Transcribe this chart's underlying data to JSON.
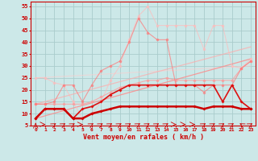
{
  "x": [
    0,
    1,
    2,
    3,
    4,
    5,
    6,
    7,
    8,
    9,
    10,
    11,
    12,
    13,
    14,
    15,
    16,
    17,
    18,
    19,
    20,
    21,
    22,
    23
  ],
  "line_dark1": [
    8,
    12,
    12,
    12,
    8,
    8,
    10,
    11,
    12,
    13,
    13,
    13,
    13,
    13,
    13,
    13,
    13,
    13,
    12,
    13,
    13,
    13,
    12,
    12
  ],
  "line_dark2": [
    8,
    12,
    12,
    12,
    8,
    12,
    13,
    15,
    18,
    20,
    22,
    22,
    22,
    22,
    22,
    22,
    22,
    22,
    22,
    22,
    15,
    22,
    15,
    12
  ],
  "line_med1": [
    14,
    14,
    14,
    14,
    14,
    14,
    15,
    17,
    19,
    21,
    22,
    23,
    24,
    24,
    25,
    24,
    24,
    24,
    24,
    24,
    24,
    24,
    29,
    32
  ],
  "line_med2": [
    14,
    14,
    15,
    22,
    22,
    15,
    22,
    28,
    30,
    32,
    40,
    50,
    44,
    41,
    41,
    22,
    22,
    22,
    19,
    22,
    22,
    22,
    29,
    32
  ],
  "line_light1": [
    25,
    25,
    23,
    22,
    15,
    8,
    10,
    15,
    24,
    30,
    41,
    51,
    55,
    47,
    47,
    47,
    47,
    47,
    37,
    47,
    47,
    30,
    29,
    33
  ],
  "trend1_x": [
    0,
    23
  ],
  "trend1_y": [
    8,
    33
  ],
  "trend2_x": [
    0,
    23
  ],
  "trend2_y": [
    14,
    38
  ],
  "trend3_x": [
    0,
    23
  ],
  "trend3_y": [
    25,
    30
  ],
  "xlabel": "Vent moyen/en rafales ( km/h )",
  "yticks": [
    5,
    10,
    15,
    20,
    25,
    30,
    35,
    40,
    45,
    50,
    55
  ],
  "xticks": [
    0,
    1,
    2,
    3,
    4,
    5,
    6,
    7,
    8,
    9,
    10,
    11,
    12,
    13,
    14,
    15,
    16,
    17,
    18,
    19,
    20,
    21,
    22,
    23
  ],
  "ylim": [
    5,
    57
  ],
  "xlim": [
    -0.5,
    23.5
  ],
  "bg_color": "#cce8e8",
  "grid_color": "#aacccc"
}
